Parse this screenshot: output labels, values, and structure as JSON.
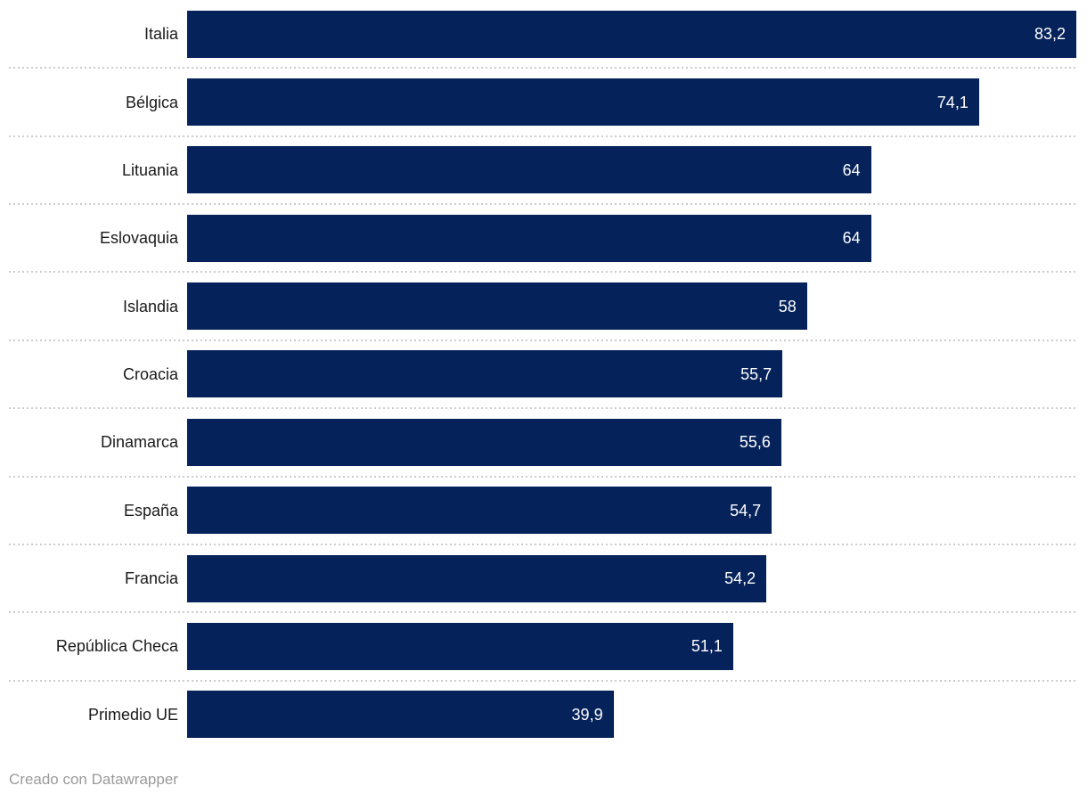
{
  "chart_data": {
    "type": "bar",
    "orientation": "horizontal",
    "categories": [
      "Italia",
      "Bélgica",
      "Lituania",
      "Eslovaquia",
      "Islandia",
      "Croacia",
      "Dinamarca",
      "España",
      "Francia",
      "República Checa",
      "Primedio UE"
    ],
    "values": [
      83.2,
      74.1,
      64,
      64,
      58,
      55.7,
      55.6,
      54.7,
      54.2,
      51.1,
      39.9
    ],
    "value_labels": [
      "83,2",
      "74,1",
      "64",
      "64",
      "58",
      "55,7",
      "55,6",
      "54,7",
      "54,2",
      "51,1",
      "39,9"
    ],
    "xmax": 83.2,
    "xlabel": "",
    "ylabel": "",
    "legend": "none",
    "grid": "dotted-row-separators",
    "bar_color": "#05225a",
    "value_label_color": "#ffffff",
    "category_label_color": "#1a1a1a",
    "separator_color": "#cccccc"
  },
  "footer": {
    "attribution": "Creado con Datawrapper",
    "color": "#9b9b9b"
  }
}
